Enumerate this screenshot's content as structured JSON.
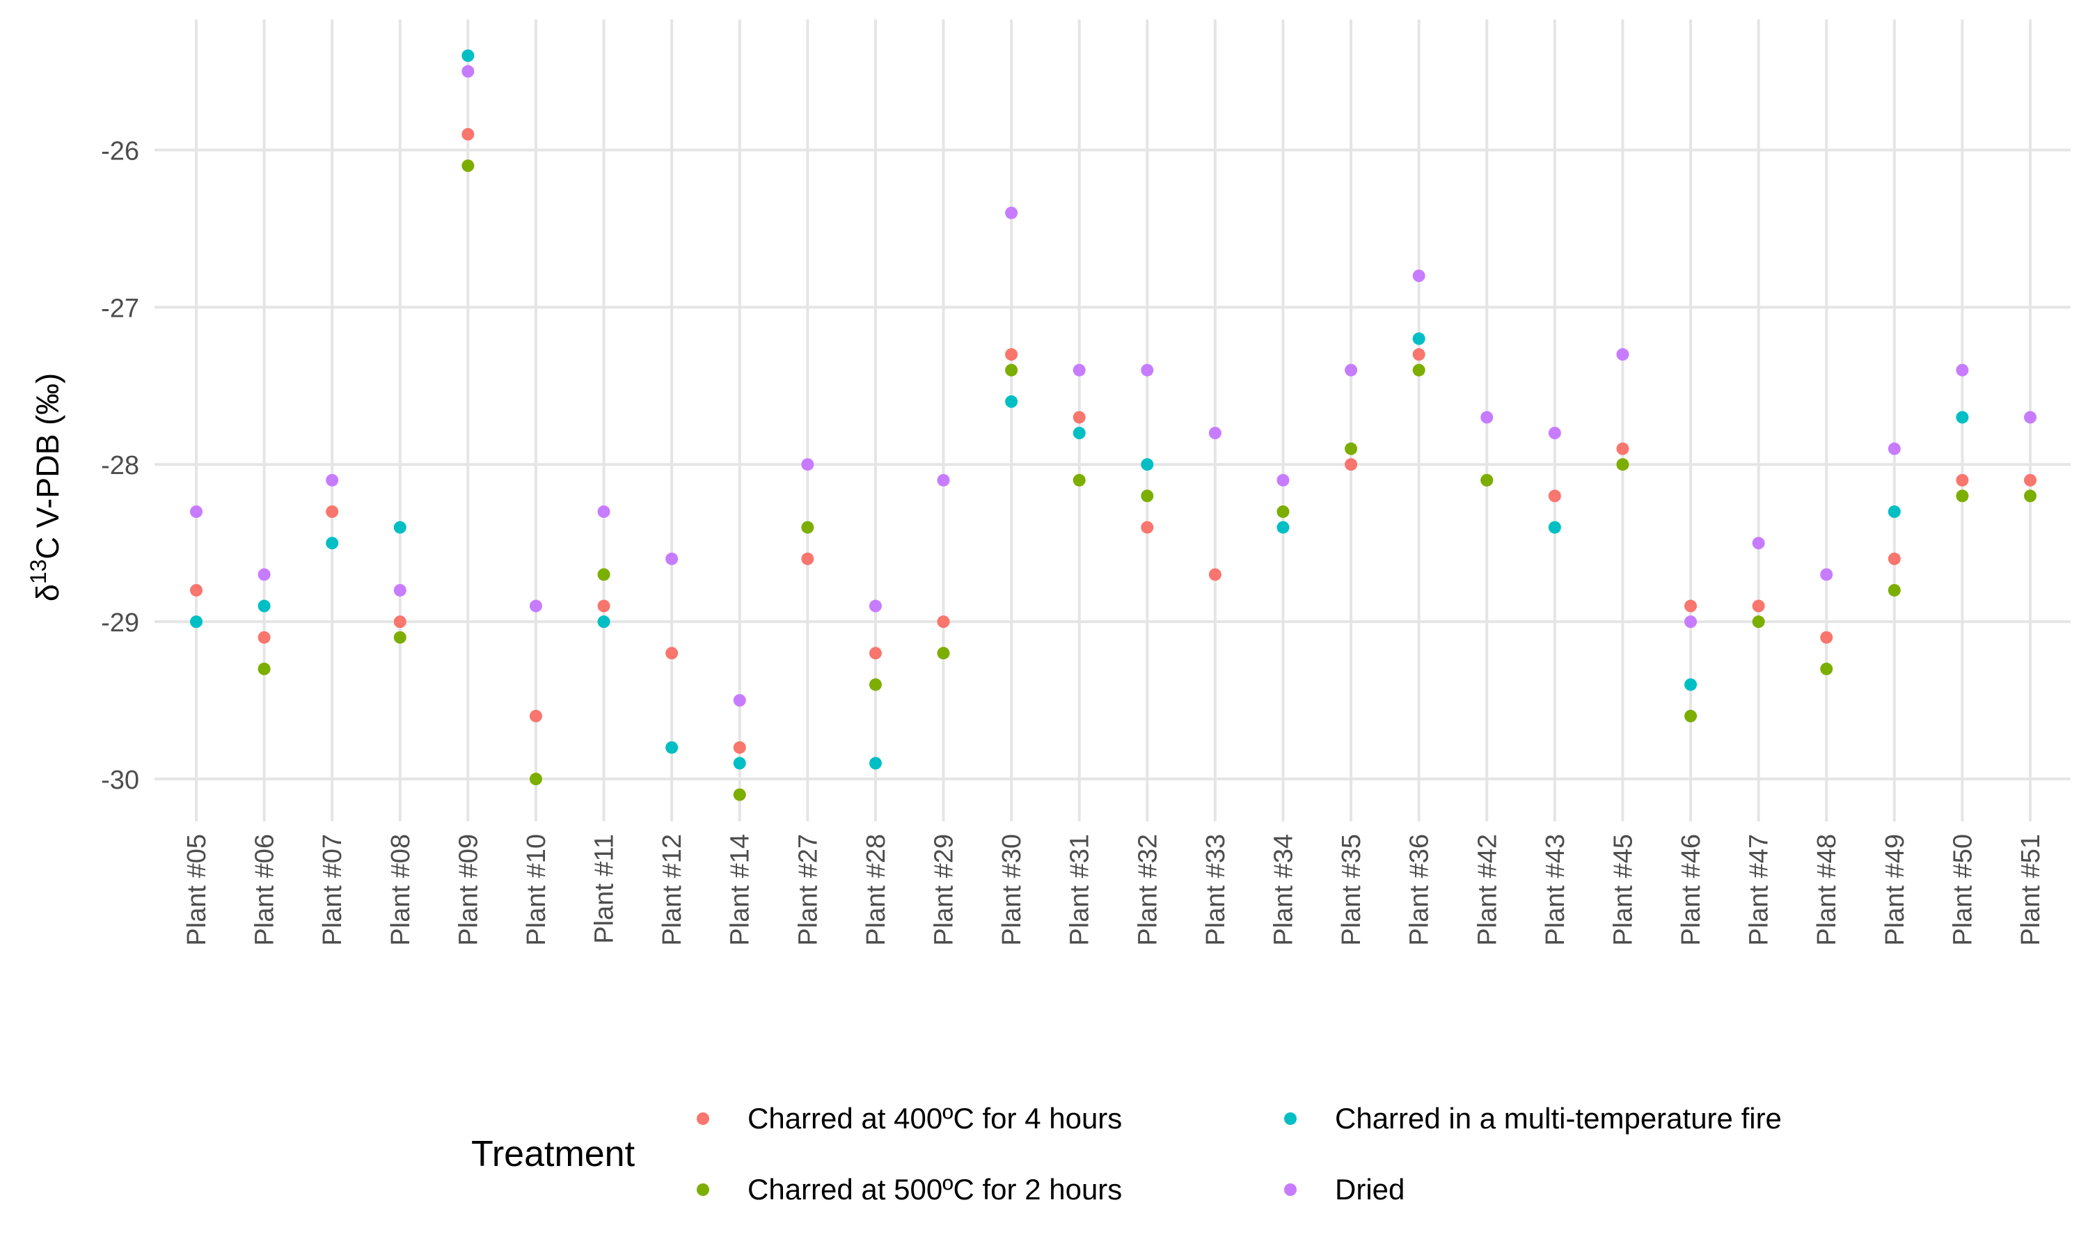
{
  "chart_data": {
    "type": "scatter",
    "title": "",
    "xlabel": "",
    "ylabel": {
      "prefix": "δ",
      "superscript": "13",
      "suffix": "C V-PDB (‰)"
    },
    "ylim": [
      -30.27,
      -25.17
    ],
    "yticks": [
      -26,
      -27,
      -28,
      -29,
      -30
    ],
    "grid": true,
    "legend_position": "bottom",
    "legend_title": "Treatment",
    "categories": [
      "Plant #05",
      "Plant #06",
      "Plant #07",
      "Plant #08",
      "Plant #09",
      "Plant #10",
      "Plant #11",
      "Plant #12",
      "Plant #14",
      "Plant #27",
      "Plant #28",
      "Plant #29",
      "Plant #30",
      "Plant #31",
      "Plant #32",
      "Plant #33",
      "Plant #34",
      "Plant #35",
      "Plant #36",
      "Plant #42",
      "Plant #43",
      "Plant #45",
      "Plant #46",
      "Plant #47",
      "Plant #48",
      "Plant #49",
      "Plant #50",
      "Plant #51"
    ],
    "series": [
      {
        "name": "Charred at 400ºC for 4 hours",
        "color": "#F8766D",
        "values": [
          -28.8,
          -29.1,
          -28.3,
          -29.0,
          -25.9,
          -29.6,
          -28.9,
          -29.2,
          -29.8,
          -28.6,
          -29.2,
          -29.0,
          -27.3,
          -27.7,
          -28.4,
          -28.7,
          null,
          -28.0,
          -27.3,
          -28.1,
          -28.2,
          -27.9,
          -28.9,
          -28.9,
          -29.1,
          -28.6,
          -28.1,
          -28.1
        ]
      },
      {
        "name": "Charred at 500ºC for 2 hours",
        "color": "#7CAE00",
        "values": [
          null,
          -29.3,
          null,
          -29.1,
          -26.1,
          -30.0,
          -28.7,
          null,
          -30.1,
          -28.4,
          -29.4,
          -29.2,
          -27.4,
          -28.1,
          -28.2,
          null,
          -28.3,
          -27.9,
          -27.4,
          -28.1,
          null,
          -28.0,
          -29.6,
          -29.0,
          -29.3,
          -28.8,
          -28.2,
          -28.2
        ]
      },
      {
        "name": "Charred in a multi-temperature fire",
        "color": "#00BFC4",
        "values": [
          -29.0,
          -28.9,
          -28.5,
          -28.4,
          -25.4,
          null,
          -29.0,
          -29.8,
          -29.9,
          null,
          -29.9,
          null,
          -27.6,
          -27.8,
          -28.0,
          null,
          -28.4,
          null,
          -27.2,
          null,
          -28.4,
          null,
          -29.4,
          null,
          null,
          -28.3,
          -27.7,
          null
        ]
      },
      {
        "name": "Dried",
        "color": "#C77CFF",
        "values": [
          -28.3,
          -28.7,
          -28.1,
          -28.8,
          -25.5,
          -28.9,
          -28.3,
          -28.6,
          -29.5,
          -28.0,
          -28.9,
          -28.1,
          -26.4,
          -27.4,
          -27.4,
          -27.8,
          -28.1,
          -27.4,
          -26.8,
          -27.7,
          -27.8,
          -27.3,
          -29.0,
          -28.5,
          -28.7,
          -27.9,
          -27.4,
          -27.7
        ]
      }
    ],
    "legend_order": [
      0,
      1,
      2,
      3
    ]
  }
}
